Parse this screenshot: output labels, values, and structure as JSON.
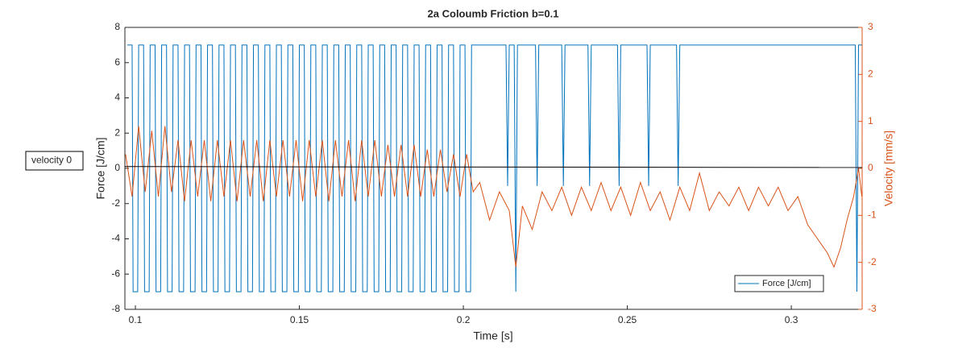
{
  "chart_data": {
    "type": "line",
    "title": "2a Coloumb Friction b=0.1",
    "x_label": "Time [s]",
    "y_label": "Force [J/cm]",
    "y2_label": "Velocity [mm/s]",
    "annotation": "velocity 0",
    "xlim": [
      0.0968,
      0.3216
    ],
    "xticks": [
      0.1,
      0.15,
      0.2,
      0.25,
      0.3
    ],
    "ylim": [
      -8,
      8
    ],
    "yticks": [
      -8,
      -6,
      -4,
      -2,
      0,
      2,
      4,
      6,
      8
    ],
    "y2lim": [
      -3,
      3
    ],
    "y2ticks": [
      -3,
      -2,
      -1,
      0,
      1,
      2,
      3
    ],
    "legend": "lower right",
    "series": [
      {
        "name": "Force [J/cm]",
        "color": "#0072bd",
        "axis": "y",
        "x": [
          0.0975,
          0.099,
          0.0993,
          0.1007,
          0.101,
          0.1025,
          0.1028,
          0.1042,
          0.1045,
          0.106,
          0.1063,
          0.1077,
          0.108,
          0.1095,
          0.1098,
          0.1112,
          0.1115,
          0.113,
          0.1133,
          0.1147,
          0.115,
          0.1165,
          0.1168,
          0.1182,
          0.1185,
          0.12,
          0.1203,
          0.1217,
          0.122,
          0.1235,
          0.1238,
          0.1252,
          0.1255,
          0.127,
          0.1273,
          0.1287,
          0.129,
          0.1305,
          0.1308,
          0.1322,
          0.1325,
          0.134,
          0.1343,
          0.1357,
          0.136,
          0.1375,
          0.1378,
          0.1392,
          0.1395,
          0.141,
          0.1413,
          0.1427,
          0.143,
          0.1445,
          0.1448,
          0.1462,
          0.1465,
          0.148,
          0.1483,
          0.1497,
          0.15,
          0.1515,
          0.1518,
          0.1532,
          0.1535,
          0.155,
          0.1553,
          0.1567,
          0.157,
          0.1585,
          0.1588,
          0.1602,
          0.1605,
          0.162,
          0.1623,
          0.1637,
          0.164,
          0.1655,
          0.1658,
          0.1672,
          0.1675,
          0.169,
          0.1693,
          0.1707,
          0.171,
          0.1725,
          0.1728,
          0.1742,
          0.1745,
          0.176,
          0.1763,
          0.1777,
          0.178,
          0.1795,
          0.1798,
          0.1812,
          0.1815,
          0.183,
          0.1833,
          0.1847,
          0.185,
          0.1865,
          0.1868,
          0.1882,
          0.1885,
          0.19,
          0.1903,
          0.1917,
          0.192,
          0.1935,
          0.1938,
          0.1952,
          0.1955,
          0.197,
          0.1973,
          0.1987,
          0.199,
          0.2005,
          0.2008,
          0.2022,
          0.2025,
          0.213,
          0.2135,
          0.214,
          0.2155,
          0.216,
          0.2165,
          0.222,
          0.2225,
          0.223,
          0.23,
          0.2305,
          0.231,
          0.238,
          0.2385,
          0.239,
          0.247,
          0.2475,
          0.248,
          0.256,
          0.2565,
          0.257,
          0.265,
          0.2655,
          0.266,
          0.3195,
          0.32,
          0.3205,
          0.3215
        ],
        "values": [
          7,
          7,
          -7,
          -7,
          7,
          7,
          -7,
          -7,
          7,
          7,
          -7,
          -7,
          7,
          7,
          -7,
          -7,
          7,
          7,
          -7,
          -7,
          7,
          7,
          -7,
          -7,
          7,
          7,
          -7,
          -7,
          7,
          7,
          -7,
          -7,
          7,
          7,
          -7,
          -7,
          7,
          7,
          -7,
          -7,
          7,
          7,
          -7,
          -7,
          7,
          7,
          -7,
          -7,
          7,
          7,
          -7,
          -7,
          7,
          7,
          -7,
          -7,
          7,
          7,
          -7,
          -7,
          7,
          7,
          -7,
          -7,
          7,
          7,
          -7,
          -7,
          7,
          7,
          -7,
          -7,
          7,
          7,
          -7,
          -7,
          7,
          7,
          -7,
          -7,
          7,
          7,
          -7,
          -7,
          7,
          7,
          -7,
          -7,
          7,
          7,
          -7,
          -7,
          7,
          7,
          -7,
          -7,
          7,
          7,
          -7,
          -7,
          7,
          7,
          -7,
          -7,
          7,
          7,
          -7,
          -7,
          7,
          7,
          -7,
          -7,
          7,
          7,
          -7,
          -7,
          7,
          7,
          -7,
          -7,
          7,
          7,
          -1,
          7,
          7,
          -7,
          7,
          7,
          -1,
          7,
          7,
          -1,
          7,
          7,
          -1,
          7,
          7,
          -1,
          7,
          7,
          -1,
          7,
          7,
          -1,
          7,
          7,
          -7,
          7,
          7
        ]
      },
      {
        "color": "#d95319",
        "axis": "y2",
        "x": [
          0.097,
          0.099,
          0.101,
          0.103,
          0.105,
          0.107,
          0.109,
          0.111,
          0.113,
          0.115,
          0.117,
          0.119,
          0.121,
          0.123,
          0.125,
          0.127,
          0.129,
          0.131,
          0.133,
          0.135,
          0.137,
          0.139,
          0.141,
          0.143,
          0.145,
          0.147,
          0.149,
          0.151,
          0.153,
          0.155,
          0.157,
          0.159,
          0.161,
          0.163,
          0.165,
          0.167,
          0.169,
          0.171,
          0.173,
          0.175,
          0.177,
          0.179,
          0.181,
          0.183,
          0.185,
          0.187,
          0.189,
          0.191,
          0.193,
          0.195,
          0.197,
          0.199,
          0.201,
          0.203,
          0.205,
          0.208,
          0.211,
          0.214,
          0.216,
          0.218,
          0.221,
          0.224,
          0.227,
          0.23,
          0.233,
          0.236,
          0.239,
          0.242,
          0.245,
          0.248,
          0.251,
          0.254,
          0.257,
          0.26,
          0.263,
          0.266,
          0.269,
          0.272,
          0.275,
          0.278,
          0.281,
          0.284,
          0.287,
          0.29,
          0.293,
          0.296,
          0.299,
          0.302,
          0.305,
          0.308,
          0.311,
          0.313,
          0.315,
          0.317,
          0.319,
          0.3205,
          0.3215
        ],
        "values": [
          0.3,
          -0.6,
          0.9,
          -0.5,
          0.8,
          -0.6,
          0.9,
          -0.5,
          0.6,
          -0.7,
          0.6,
          -0.6,
          0.6,
          -0.7,
          0.6,
          -0.6,
          0.6,
          -0.7,
          0.6,
          -0.6,
          0.6,
          -0.7,
          0.6,
          -0.6,
          0.6,
          -0.6,
          0.6,
          -0.7,
          0.6,
          -0.6,
          0.6,
          -0.7,
          0.6,
          -0.6,
          0.6,
          -0.7,
          0.6,
          -0.6,
          0.6,
          -0.6,
          0.5,
          -0.6,
          0.5,
          -0.6,
          0.5,
          -0.6,
          0.4,
          -0.6,
          0.4,
          -0.5,
          0.3,
          -0.6,
          0.3,
          -0.5,
          -0.3,
          -1.1,
          -0.5,
          -0.9,
          -2.1,
          -0.8,
          -1.3,
          -0.5,
          -0.9,
          -0.4,
          -1,
          -0.4,
          -0.9,
          -0.3,
          -0.9,
          -0.4,
          -1,
          -0.3,
          -0.9,
          -0.5,
          -1.1,
          -0.4,
          -0.9,
          -0.1,
          -0.9,
          -0.5,
          -0.8,
          -0.4,
          -0.9,
          -0.4,
          -0.8,
          -0.4,
          -0.9,
          -0.6,
          -1.2,
          -1.5,
          -1.8,
          -2.1,
          -1.7,
          -1.1,
          -0.6,
          0,
          -0.6
        ]
      }
    ],
    "reference_line": {
      "color": "#000000",
      "x": [
        0.0968,
        0.3216
      ],
      "values": [
        0.1,
        0.05
      ]
    }
  }
}
